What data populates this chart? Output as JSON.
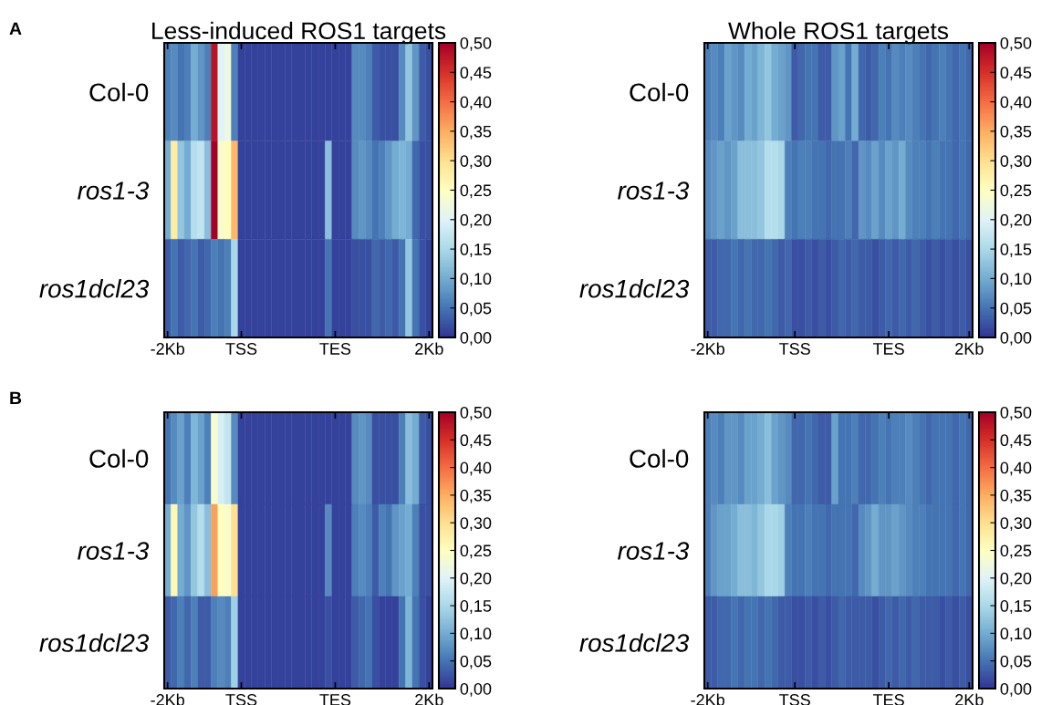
{
  "chart_data": [
    {
      "type": "heatmap",
      "title": "Less-induced ROS1 targets",
      "annotations": [
        "A"
      ],
      "categories": [
        "-2Kb",
        null,
        null,
        null,
        null,
        null,
        null,
        null,
        null,
        null,
        null,
        "TSS",
        null,
        null,
        null,
        null,
        null,
        null,
        null,
        null,
        null,
        null,
        null,
        null,
        null,
        "TES",
        null,
        null,
        null,
        null,
        null,
        null,
        null,
        null,
        null,
        null,
        null,
        null,
        null,
        "2Kb"
      ],
      "y_categories": [
        "Col-0",
        "ros1-3",
        "ros1dcl23"
      ],
      "cells": [
        [
          0.06,
          0.07,
          0.05,
          0.06,
          0.1,
          0.08,
          0.06,
          0.48,
          0.2,
          0.22,
          0.06,
          0.01,
          0.01,
          0.01,
          0.01,
          0.01,
          0.01,
          0.01,
          0.01,
          0.01,
          0.01,
          0.01,
          0.01,
          0.01,
          0.01,
          0.01,
          0.01,
          0.01,
          0.07,
          0.07,
          0.06,
          0.03,
          0.02,
          0.02,
          0.02,
          0.07,
          0.13,
          0.08,
          0.03,
          0.02
        ],
        [
          0.1,
          0.28,
          0.13,
          0.1,
          0.16,
          0.17,
          0.12,
          0.5,
          0.24,
          0.25,
          0.34,
          0.01,
          0.01,
          0.01,
          0.01,
          0.01,
          0.01,
          0.01,
          0.01,
          0.01,
          0.01,
          0.01,
          0.01,
          0.01,
          0.12,
          0.01,
          0.01,
          0.01,
          0.07,
          0.08,
          0.07,
          0.05,
          0.06,
          0.08,
          0.1,
          0.11,
          0.1,
          0.04,
          0.02,
          0.02
        ],
        [
          0.03,
          0.05,
          0.03,
          0.04,
          0.05,
          0.03,
          0.04,
          0.06,
          0.05,
          0.06,
          0.15,
          0.01,
          0.01,
          0.01,
          0.01,
          0.01,
          0.01,
          0.01,
          0.01,
          0.01,
          0.01,
          0.01,
          0.01,
          0.01,
          0.05,
          0.01,
          0.01,
          0.01,
          0.02,
          0.02,
          0.02,
          0.04,
          0.03,
          0.04,
          0.03,
          0.05,
          0.13,
          0.05,
          0.02,
          0.01
        ]
      ],
      "clim": [
        0,
        0.5
      ],
      "cticks": [
        {
          "value": 0,
          "label": "0,00"
        },
        {
          "value": 0.05,
          "label": "0,05"
        },
        {
          "value": 0.1,
          "label": "0,10"
        },
        {
          "value": 0.15,
          "label": "0,15"
        },
        {
          "value": 0.2,
          "label": "0,20"
        },
        {
          "value": 0.25,
          "label": "0,25"
        },
        {
          "value": 0.3,
          "label": "0,30"
        },
        {
          "value": 0.35,
          "label": "0,35"
        },
        {
          "value": 0.4,
          "label": "0,40"
        },
        {
          "value": 0.45,
          "label": "0,45"
        },
        {
          "value": 0.5,
          "label": "0,50"
        }
      ]
    },
    {
      "type": "heatmap",
      "title": "Whole ROS1 targets",
      "categories": [
        "-2Kb",
        null,
        null,
        null,
        null,
        null,
        null,
        null,
        null,
        null,
        null,
        null,
        null,
        "TSS",
        null,
        null,
        null,
        null,
        null,
        null,
        null,
        null,
        null,
        null,
        null,
        null,
        null,
        "TES",
        null,
        null,
        null,
        null,
        null,
        null,
        null,
        null,
        null,
        null,
        null,
        "2Kb"
      ],
      "y_categories": [
        "Col-0",
        "ros1-3",
        "ros1dcl23"
      ],
      "cells": [
        [
          0.06,
          0.07,
          0.06,
          0.09,
          0.08,
          0.07,
          0.1,
          0.09,
          0.11,
          0.13,
          0.1,
          0.09,
          0.08,
          0.03,
          0.04,
          0.05,
          0.05,
          0.03,
          0.03,
          0.08,
          0.09,
          0.05,
          0.1,
          0.04,
          0.03,
          0.04,
          0.06,
          0.05,
          0.07,
          0.06,
          0.07,
          0.06,
          0.05,
          0.04,
          0.05,
          0.06,
          0.05,
          0.04,
          0.05,
          0.04
        ],
        [
          0.07,
          0.08,
          0.09,
          0.08,
          0.09,
          0.12,
          0.12,
          0.12,
          0.13,
          0.16,
          0.16,
          0.15,
          0.06,
          0.05,
          0.06,
          0.06,
          0.05,
          0.05,
          0.04,
          0.05,
          0.05,
          0.06,
          0.04,
          0.08,
          0.07,
          0.09,
          0.07,
          0.09,
          0.08,
          0.1,
          0.07,
          0.06,
          0.06,
          0.05,
          0.06,
          0.05,
          0.05,
          0.04,
          0.05,
          0.04
        ],
        [
          0.03,
          0.03,
          0.04,
          0.04,
          0.05,
          0.04,
          0.05,
          0.04,
          0.04,
          0.05,
          0.04,
          0.03,
          0.04,
          0.02,
          0.02,
          0.03,
          0.02,
          0.03,
          0.02,
          0.03,
          0.04,
          0.03,
          0.04,
          0.03,
          0.03,
          0.02,
          0.03,
          0.04,
          0.03,
          0.04,
          0.03,
          0.04,
          0.03,
          0.02,
          0.03,
          0.02,
          0.03,
          0.02,
          0.03,
          0.02
        ]
      ],
      "clim": [
        0,
        0.5
      ],
      "cticks": [
        {
          "value": 0,
          "label": "0,00"
        },
        {
          "value": 0.05,
          "label": "0,05"
        },
        {
          "value": 0.1,
          "label": "0,10"
        },
        {
          "value": 0.15,
          "label": "0,15"
        },
        {
          "value": 0.2,
          "label": "0,20"
        },
        {
          "value": 0.25,
          "label": "0,25"
        },
        {
          "value": 0.3,
          "label": "0,30"
        },
        {
          "value": 0.35,
          "label": "0,35"
        },
        {
          "value": 0.4,
          "label": "0,40"
        },
        {
          "value": 0.45,
          "label": "0,45"
        },
        {
          "value": 0.5,
          "label": "0,50"
        }
      ]
    },
    {
      "type": "heatmap",
      "annotations": [
        "B"
      ],
      "categories": [
        "-2Kb",
        null,
        null,
        null,
        null,
        null,
        null,
        null,
        null,
        null,
        null,
        "TSS",
        null,
        null,
        null,
        null,
        null,
        null,
        null,
        null,
        null,
        null,
        null,
        null,
        null,
        "TES",
        null,
        null,
        null,
        null,
        null,
        null,
        null,
        null,
        null,
        null,
        null,
        null,
        null,
        "2Kb"
      ],
      "y_categories": [
        "Col-0",
        "ros1-3",
        "ros1dcl23"
      ],
      "cells": [
        [
          0.05,
          0.07,
          0.09,
          0.06,
          0.11,
          0.09,
          0.06,
          0.24,
          0.19,
          0.17,
          0.07,
          0.01,
          0.01,
          0.01,
          0.01,
          0.01,
          0.01,
          0.01,
          0.01,
          0.01,
          0.01,
          0.01,
          0.01,
          0.01,
          0.01,
          0.01,
          0.01,
          0.01,
          0.07,
          0.08,
          0.07,
          0.02,
          0.02,
          0.02,
          0.02,
          0.06,
          0.12,
          0.1,
          0.03,
          0.02
        ],
        [
          0.1,
          0.26,
          0.1,
          0.08,
          0.13,
          0.16,
          0.12,
          0.36,
          0.25,
          0.24,
          0.3,
          0.01,
          0.01,
          0.01,
          0.01,
          0.01,
          0.01,
          0.01,
          0.01,
          0.01,
          0.01,
          0.01,
          0.01,
          0.01,
          0.07,
          0.01,
          0.01,
          0.01,
          0.06,
          0.07,
          0.06,
          0.03,
          0.06,
          0.05,
          0.08,
          0.09,
          0.1,
          0.06,
          0.02,
          0.02
        ],
        [
          0.03,
          0.04,
          0.06,
          0.04,
          0.06,
          0.03,
          0.03,
          0.06,
          0.07,
          0.06,
          0.14,
          0.01,
          0.01,
          0.01,
          0.01,
          0.01,
          0.01,
          0.01,
          0.01,
          0.01,
          0.01,
          0.01,
          0.01,
          0.01,
          0.02,
          0.01,
          0.01,
          0.01,
          0.03,
          0.04,
          0.05,
          0.02,
          0.01,
          0.01,
          0.01,
          0.05,
          0.11,
          0.05,
          0.02,
          0.01
        ]
      ],
      "clim": [
        0,
        0.5
      ],
      "cticks": [
        {
          "value": 0,
          "label": "0,00"
        },
        {
          "value": 0.05,
          "label": "0,05"
        },
        {
          "value": 0.1,
          "label": "0,10"
        },
        {
          "value": 0.15,
          "label": "0,15"
        },
        {
          "value": 0.2,
          "label": "0,20"
        },
        {
          "value": 0.25,
          "label": "0,25"
        },
        {
          "value": 0.3,
          "label": "0,30"
        },
        {
          "value": 0.35,
          "label": "0,35"
        },
        {
          "value": 0.4,
          "label": "0,40"
        },
        {
          "value": 0.45,
          "label": "0,45"
        },
        {
          "value": 0.5,
          "label": "0,50"
        }
      ]
    },
    {
      "type": "heatmap",
      "categories": [
        "-2Kb",
        null,
        null,
        null,
        null,
        null,
        null,
        null,
        null,
        null,
        null,
        null,
        null,
        "TSS",
        null,
        null,
        null,
        null,
        null,
        null,
        null,
        null,
        null,
        null,
        null,
        null,
        null,
        "TES",
        null,
        null,
        null,
        null,
        null,
        null,
        null,
        null,
        null,
        null,
        null,
        "2Kb"
      ],
      "y_categories": [
        "Col-0",
        "ros1-3",
        "ros1dcl23"
      ],
      "cells": [
        [
          0.06,
          0.07,
          0.06,
          0.08,
          0.08,
          0.07,
          0.09,
          0.09,
          0.1,
          0.12,
          0.09,
          0.08,
          0.07,
          0.04,
          0.04,
          0.05,
          0.04,
          0.03,
          0.03,
          0.09,
          0.05,
          0.05,
          0.06,
          0.04,
          0.04,
          0.05,
          0.06,
          0.05,
          0.06,
          0.06,
          0.07,
          0.06,
          0.05,
          0.04,
          0.05,
          0.05,
          0.05,
          0.04,
          0.05,
          0.04
        ],
        [
          0.06,
          0.08,
          0.09,
          0.09,
          0.1,
          0.12,
          0.12,
          0.11,
          0.13,
          0.15,
          0.15,
          0.14,
          0.06,
          0.05,
          0.05,
          0.06,
          0.05,
          0.05,
          0.04,
          0.05,
          0.05,
          0.05,
          0.04,
          0.07,
          0.08,
          0.1,
          0.08,
          0.08,
          0.09,
          0.08,
          0.07,
          0.06,
          0.06,
          0.05,
          0.05,
          0.05,
          0.05,
          0.04,
          0.05,
          0.04
        ],
        [
          0.03,
          0.03,
          0.04,
          0.04,
          0.05,
          0.04,
          0.05,
          0.05,
          0.04,
          0.05,
          0.04,
          0.03,
          0.03,
          0.02,
          0.02,
          0.03,
          0.02,
          0.03,
          0.02,
          0.03,
          0.04,
          0.03,
          0.03,
          0.03,
          0.03,
          0.02,
          0.03,
          0.04,
          0.03,
          0.04,
          0.03,
          0.04,
          0.03,
          0.03,
          0.03,
          0.02,
          0.03,
          0.02,
          0.03,
          0.02
        ]
      ],
      "clim": [
        0,
        0.5
      ],
      "cticks": [
        {
          "value": 0,
          "label": "0,00"
        },
        {
          "value": 0.05,
          "label": "0,05"
        },
        {
          "value": 0.1,
          "label": "0,10"
        },
        {
          "value": 0.15,
          "label": "0,15"
        },
        {
          "value": 0.2,
          "label": "0,20"
        },
        {
          "value": 0.25,
          "label": "0,25"
        },
        {
          "value": 0.3,
          "label": "0,30"
        },
        {
          "value": 0.35,
          "label": "0,35"
        },
        {
          "value": 0.4,
          "label": "0,40"
        },
        {
          "value": 0.45,
          "label": "0,45"
        },
        {
          "value": 0.5,
          "label": "0,50"
        }
      ]
    }
  ]
}
